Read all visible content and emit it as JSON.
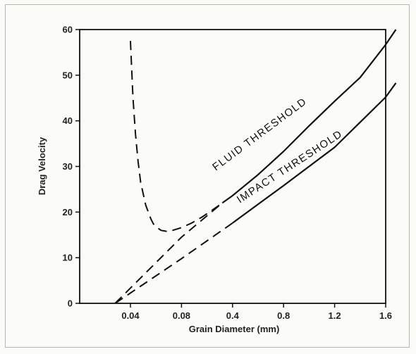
{
  "chart_data": {
    "type": "line",
    "title": "",
    "xlabel": "Grain Diameter (mm)",
    "ylabel": "Drag Velocity",
    "x_tick_labels": [
      "0.04",
      "0.08",
      "0.4",
      "0.8",
      "1.2",
      "1.6"
    ],
    "y_tick_labels": [
      "0",
      "10",
      "20",
      "30",
      "40",
      "50",
      "60"
    ],
    "ylim": [
      0,
      60
    ],
    "grid": false,
    "legend": "none",
    "annotations": [
      "FLUID THRESHOLD",
      "IMPACT THRESHOLD"
    ],
    "series": [
      {
        "name": "FLUID THRESHOLD",
        "line_style": "dashed-then-solid",
        "x_tick_index": [
          0.0,
          0.05,
          0.1,
          0.15,
          0.2,
          0.3,
          0.4,
          0.45,
          0.5,
          0.6,
          0.7,
          0.8,
          1.0,
          1.2,
          1.4,
          1.6,
          1.8,
          2.0,
          2.5,
          3.0,
          3.5,
          4.0,
          4.5,
          5.0,
          5.2
        ],
        "y": [
          57.5,
          45.0,
          37.0,
          31.0,
          26.5,
          21.5,
          18.5,
          17.4,
          16.8,
          16.0,
          15.8,
          15.9,
          16.6,
          17.6,
          18.9,
          20.4,
          22.0,
          23.6,
          28.2,
          33.3,
          38.9,
          44.3,
          49.5,
          56.7,
          60.0
        ]
      },
      {
        "name": "IMPACT THRESHOLD",
        "line_style": "dashed-then-solid",
        "x_tick_index": [
          -0.3,
          1.0,
          2.0,
          3.0,
          4.0,
          5.0,
          5.2
        ],
        "y": [
          0.0,
          9.8,
          17.6,
          25.8,
          34.2,
          45.2,
          48.3
        ]
      },
      {
        "name": "",
        "line_style": "dashed",
        "x_tick_index": [
          -0.3,
          1.0,
          1.8
        ],
        "y": [
          0.0,
          14.5,
          22.0
        ]
      }
    ],
    "colors": {
      "line": "#111111",
      "axis": "#111111",
      "frame": "#b8b8b0"
    }
  }
}
